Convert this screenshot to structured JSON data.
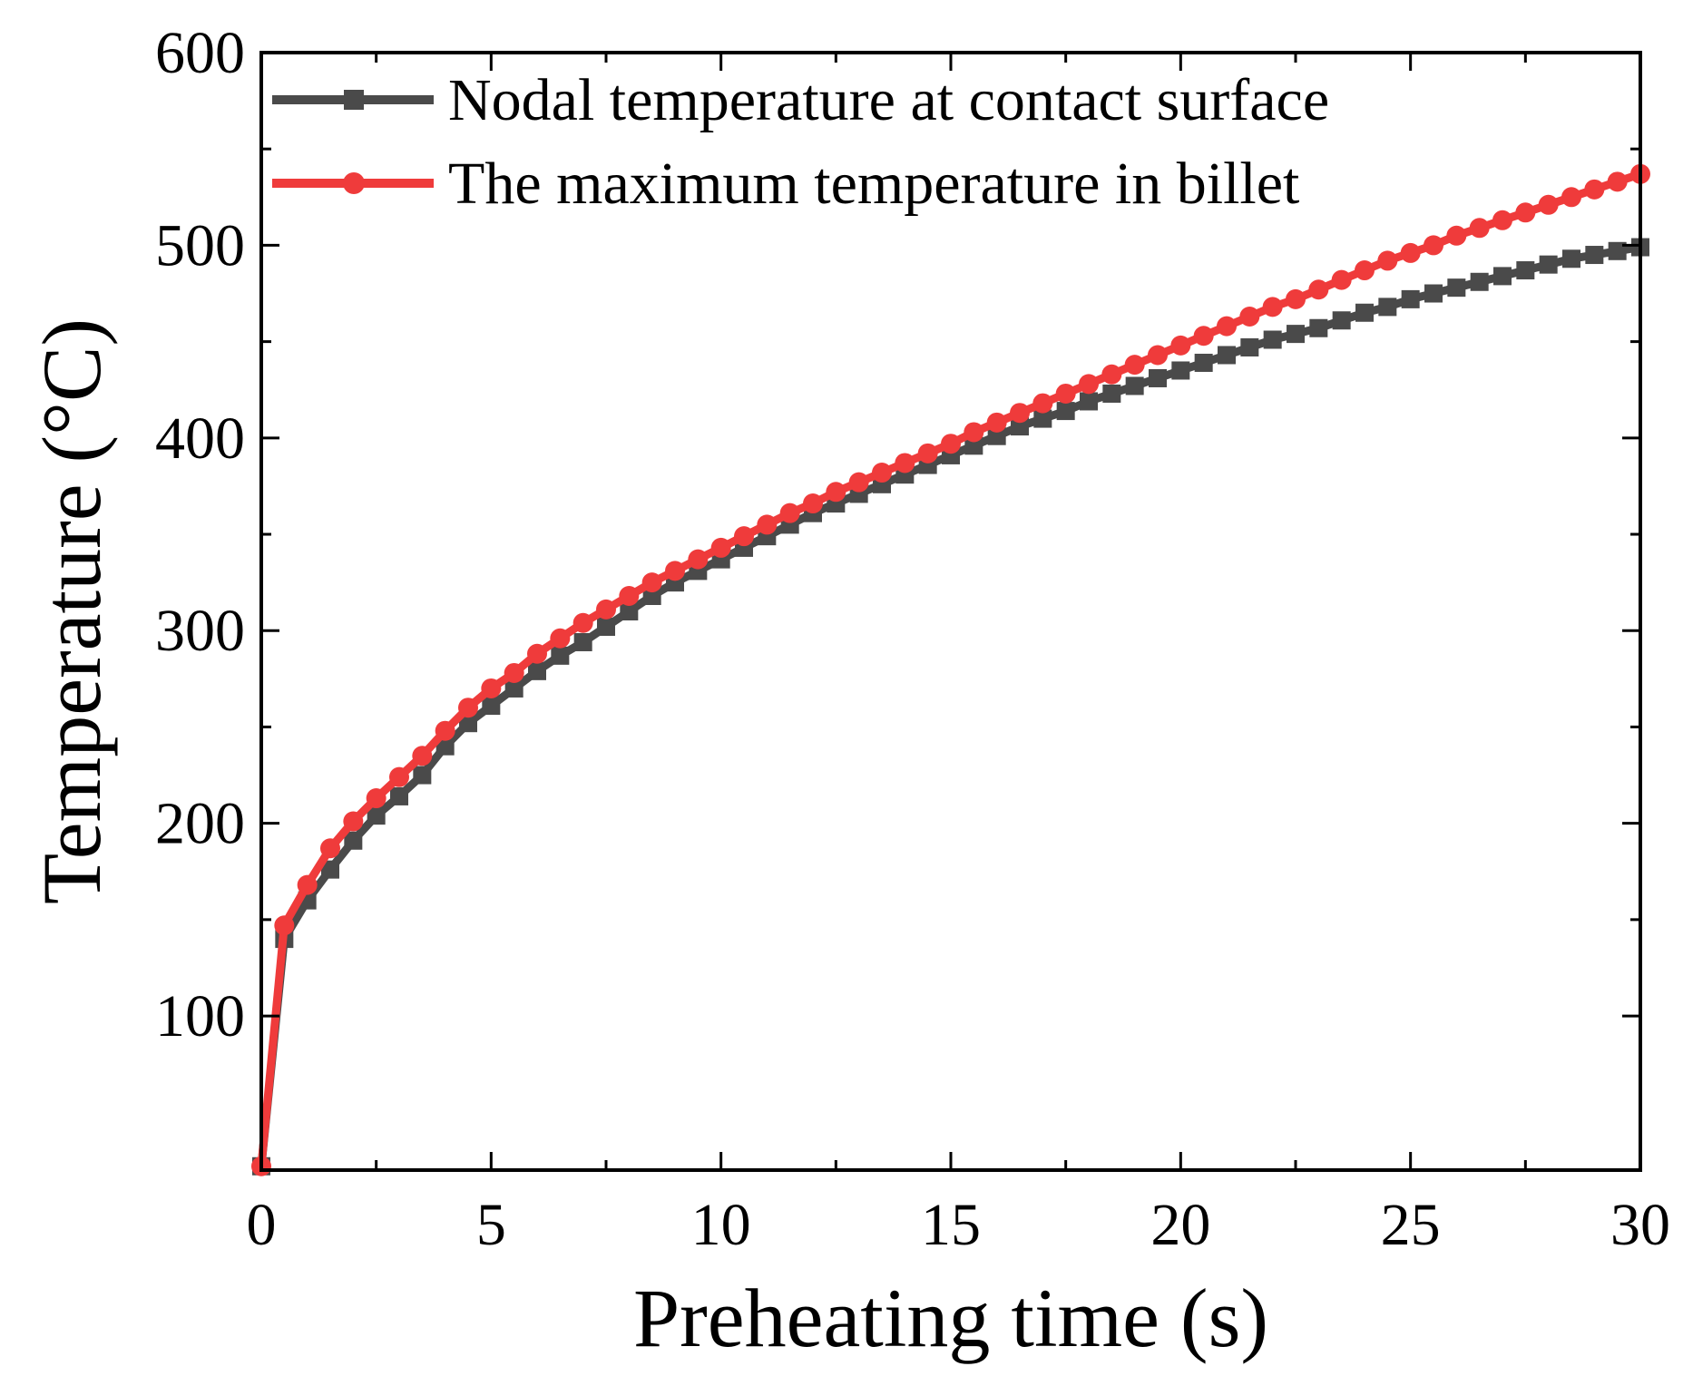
{
  "chart_data": {
    "type": "line",
    "title": "",
    "xlabel": "Preheating time (s)",
    "ylabel": "Temperature (°C)",
    "xlim": [
      0,
      30
    ],
    "ylim": [
      20,
      600
    ],
    "xticks": [
      0,
      5,
      10,
      15,
      20,
      25,
      30
    ],
    "yticks": [
      100,
      200,
      300,
      400,
      500,
      600
    ],
    "xtick_labels": [
      "0",
      "5",
      "10",
      "15",
      "20",
      "25",
      "30"
    ],
    "ytick_labels": [
      "100",
      "200",
      "300",
      "400",
      "500",
      "600"
    ],
    "grid": false,
    "legend_position": "top-left",
    "x": [
      0,
      0.5,
      1,
      1.5,
      2,
      2.5,
      3,
      3.5,
      4,
      4.5,
      5,
      5.5,
      6,
      6.5,
      7,
      7.5,
      8,
      8.5,
      9,
      9.5,
      10,
      10.5,
      11,
      11.5,
      12,
      12.5,
      13,
      13.5,
      14,
      14.5,
      15,
      15.5,
      16,
      16.5,
      17,
      17.5,
      18,
      18.5,
      19,
      19.5,
      20,
      20.5,
      21,
      21.5,
      22,
      22.5,
      23,
      23.5,
      24,
      24.5,
      25,
      25.5,
      26,
      26.5,
      27,
      27.5,
      28,
      28.5,
      29,
      29.5,
      30
    ],
    "series": [
      {
        "name": "Nodal temperature at contact surface",
        "color": "#4a4a4a",
        "marker": "square",
        "values": [
          22,
          140,
          160,
          176,
          191,
          204,
          214,
          225,
          240,
          252,
          261,
          270,
          279,
          287,
          294,
          302,
          310,
          318,
          325,
          331,
          337,
          343,
          349,
          355,
          361,
          366,
          371,
          376,
          381,
          386,
          391,
          396,
          401,
          406,
          410,
          414,
          419,
          423,
          427,
          431,
          435,
          439,
          443,
          447,
          451,
          454,
          457,
          461,
          465,
          468,
          472,
          475,
          478,
          481,
          484,
          487,
          490,
          493,
          495,
          497,
          499
        ]
      },
      {
        "name": "The maximum temperature in billet",
        "color": "#ef3b3b",
        "marker": "circle",
        "values": [
          22,
          147,
          168,
          187,
          201,
          213,
          224,
          235,
          248,
          260,
          270,
          278,
          288,
          296,
          304,
          311,
          318,
          325,
          331,
          337,
          343,
          349,
          355,
          361,
          366,
          372,
          377,
          382,
          387,
          392,
          397,
          403,
          408,
          413,
          418,
          423,
          428,
          433,
          438,
          443,
          448,
          453,
          458,
          463,
          468,
          472,
          477,
          482,
          487,
          492,
          496,
          500,
          505,
          509,
          513,
          517,
          521,
          525,
          529,
          533,
          537
        ]
      }
    ]
  }
}
